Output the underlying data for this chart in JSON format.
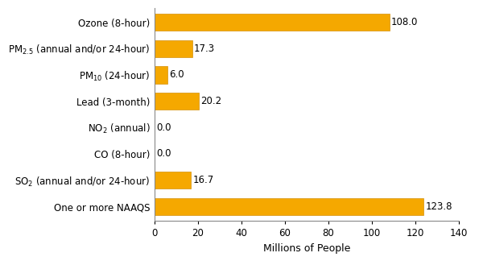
{
  "categories": [
    "One or more NAAQS",
    "SO$_2$ (annual and/or 24-hour)",
    "CO (8-hour)",
    "NO$_2$ (annual)",
    "Lead (3-month)",
    "PM$_{10}$ (24-hour)",
    "PM$_{2.5}$ (annual and/or 24-hour)",
    "Ozone (8-hour)"
  ],
  "values": [
    123.8,
    16.7,
    0.0,
    0.0,
    20.2,
    6.0,
    17.3,
    108.0
  ],
  "bar_color": "#F5A800",
  "bar_edge_color": "#D4900A",
  "value_labels": [
    "123.8",
    "16.7",
    "0.0",
    "0.0",
    "20.2",
    "6.0",
    "17.3",
    "108.0"
  ],
  "xlabel": "Millions of People",
  "xlim": [
    0,
    140
  ],
  "xticks": [
    0,
    20,
    40,
    60,
    80,
    100,
    120,
    140
  ],
  "background_color": "#ffffff",
  "label_fontsize": 8.5,
  "xlabel_fontsize": 9,
  "tick_fontsize": 8.5,
  "bar_height": 0.65
}
